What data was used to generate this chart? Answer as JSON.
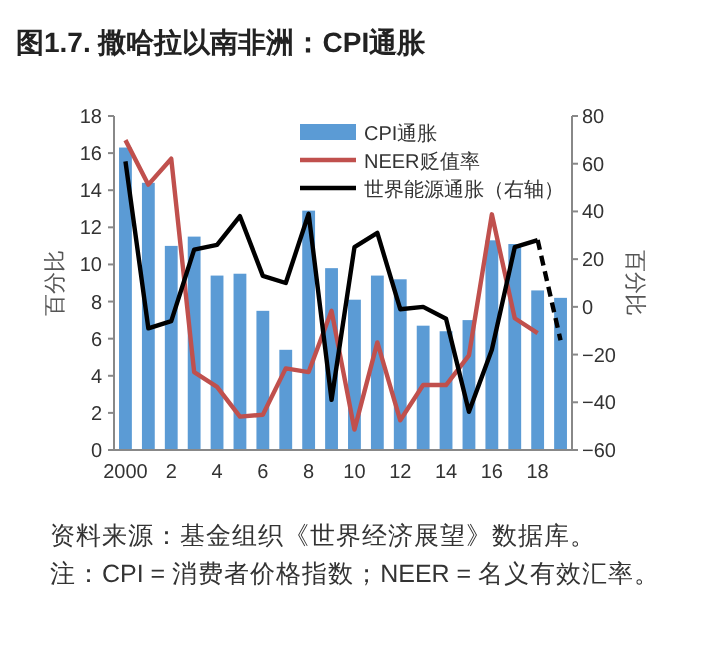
{
  "chart_data": {
    "type": "bar",
    "title": "图1.7. 撒哈拉以南非洲：CPI通胀",
    "categories": [
      "2000",
      null,
      "2",
      null,
      "4",
      null,
      "6",
      null,
      "8",
      null,
      "10",
      null,
      "12",
      null,
      "14",
      null,
      "16",
      null,
      "18",
      null
    ],
    "series": [
      {
        "name": "CPI通胀",
        "color": "#5b9bd5",
        "values": [
          16.3,
          14.4,
          11.0,
          11.5,
          9.4,
          9.5,
          7.5,
          5.4,
          12.9,
          9.8,
          8.1,
          9.4,
          9.2,
          6.7,
          6.4,
          7.0,
          11.3,
          11.1,
          8.6,
          8.2
        ]
      },
      {
        "name": "NEER贬值率",
        "type": "line",
        "color": "#c0504d",
        "values": [
          16.7,
          14.3,
          15.7,
          4.2,
          3.4,
          1.8,
          1.9,
          4.4,
          4.2,
          7.5,
          1.1,
          5.8,
          1.6,
          3.5,
          3.5,
          5.1,
          12.7,
          7.1,
          6.3,
          null
        ]
      },
      {
        "name": "世界能源通胀（右轴）",
        "type": "line",
        "axis": "y2",
        "color": "#000000",
        "line_style": "solid",
        "values": [
          61,
          -9,
          -6,
          24,
          26,
          38,
          13,
          10,
          39,
          -39,
          25,
          31,
          -1,
          0,
          -5,
          -44,
          -18,
          25,
          28,
          null
        ]
      },
      {
        "type": "line",
        "axis": "y2",
        "color": "#000000",
        "line_style": "dashed",
        "values": [
          null,
          null,
          null,
          null,
          null,
          null,
          null,
          null,
          null,
          null,
          null,
          null,
          null,
          null,
          null,
          null,
          null,
          null,
          28,
          -14
        ]
      }
    ],
    "ylabel": "百分比",
    "y2label": "百分比",
    "ylim": [
      0,
      18
    ],
    "yticks": [
      0,
      2,
      4,
      6,
      8,
      10,
      12,
      14,
      16,
      18
    ],
    "y2lim": [
      -60,
      80
    ],
    "y2ticks": [
      -60,
      -40,
      -20,
      0,
      20,
      40,
      60,
      80
    ],
    "legend": "top right",
    "grid": false,
    "annotations": [
      "资料来源：基金组织《世界经济展望》数据库。",
      "注：CPI = 消费者价格指数；NEER = 名义有效汇率。"
    ]
  }
}
